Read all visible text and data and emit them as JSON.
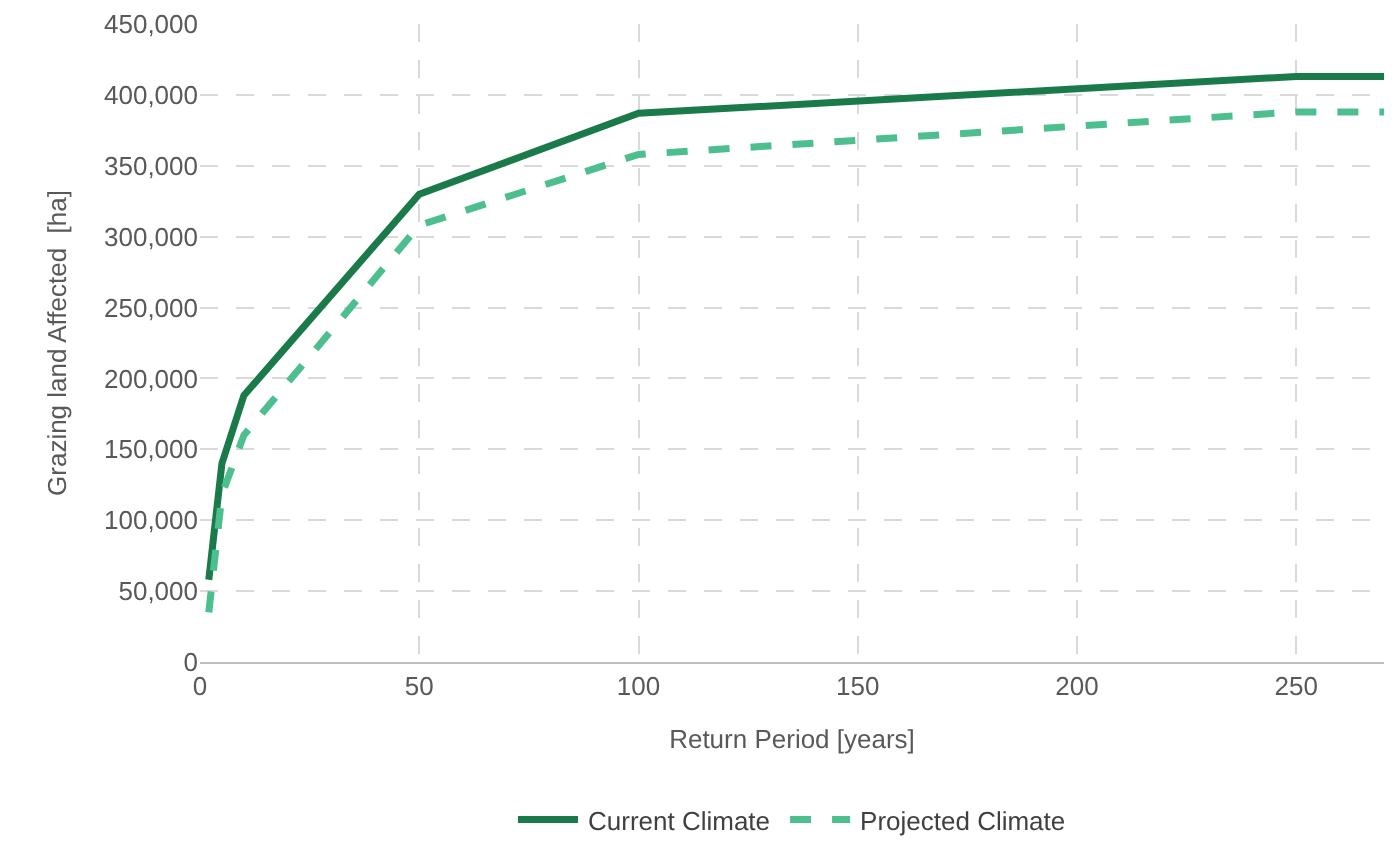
{
  "chart_data": {
    "type": "line",
    "xlabel": "Return Period [years]",
    "ylabel": "Grazing land Affected  [ha]",
    "x": [
      2,
      5,
      10,
      50,
      100,
      250,
      270
    ],
    "series": [
      {
        "name": "Current Climate",
        "color": "#1a7a4a",
        "values": [
          58000,
          140000,
          188000,
          330000,
          387000,
          413000,
          413000
        ],
        "line_style": "solid"
      },
      {
        "name": "Projected Climate",
        "color": "#4dbf8f",
        "values": [
          35000,
          118000,
          160000,
          308000,
          358000,
          388000,
          388000
        ],
        "line_style": "dashed"
      }
    ],
    "xlim": [
      0,
      270
    ],
    "xticks": [
      0,
      50,
      100,
      150,
      200,
      250
    ],
    "ylim": [
      0,
      450000
    ],
    "yticks": [
      {
        "value": 0,
        "label": "0"
      },
      {
        "value": 50000,
        "label": "50,000"
      },
      {
        "value": 100000,
        "label": "100,000"
      },
      {
        "value": 150000,
        "label": "150,000"
      },
      {
        "value": 200000,
        "label": "200,000"
      },
      {
        "value": 250000,
        "label": "250,000"
      },
      {
        "value": 300000,
        "label": "300,000"
      },
      {
        "value": 350000,
        "label": "350,000"
      },
      {
        "value": 400000,
        "label": "400,000"
      },
      {
        "value": 450000,
        "label": "450,000"
      }
    ],
    "grid": true,
    "legend": "bottom",
    "marker": "none"
  }
}
